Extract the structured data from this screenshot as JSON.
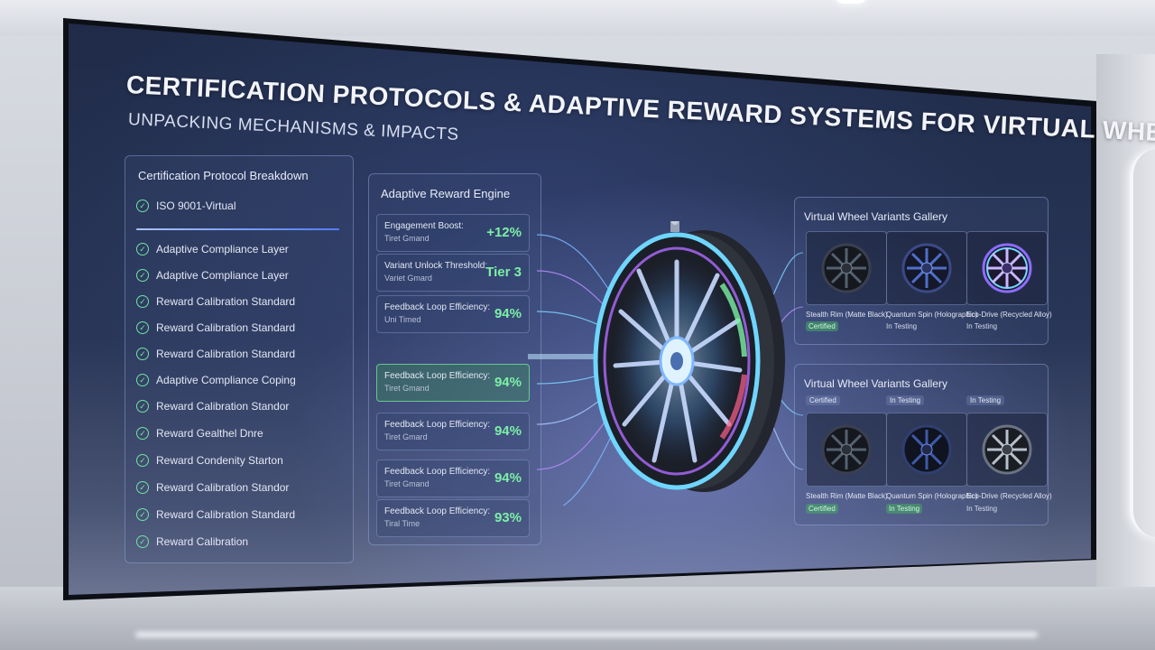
{
  "title": "Certification Protocols & Adaptive Reward Systems for Virtual Wheel Variants",
  "subtitle": "Unpacking Mechanisms & Impacts",
  "certification": {
    "title": "Certification Protocol Breakdown",
    "items": [
      "ISO 9001-Virtual",
      "Adaptive Compliance Layer",
      "Adaptive Compliance Layer",
      "Reward Calibration Standard",
      "Reward Calibration Standard",
      "Reward Calibration Standard",
      "Adaptive Compliance Coping",
      "Reward Calibration Standor",
      "Reward Gealthel Dnre",
      "Reward Condenity Starton",
      "Reward Calibration Standor",
      "Reward Calibration Standard",
      "Reward Calibration"
    ]
  },
  "engine": {
    "title": "Adaptive Reward Engine",
    "metrics": [
      {
        "label": "Engagement Boost:",
        "sub": "Tiret Gmand",
        "value": "+12%"
      },
      {
        "label": "Variant Unlock Threshold:",
        "sub": "Variet Gmard",
        "value": "Tier 3"
      },
      {
        "label": "Feedback Loop Efficiency:",
        "sub": "Uni Timed",
        "value": "94%"
      },
      {
        "label": "Feedback Loop Efficiency:",
        "sub": "Tiret Gmand",
        "value": "94%"
      },
      {
        "label": "Feedback Loop Efficiency:",
        "sub": "Tiret Gmard",
        "value": "94%"
      },
      {
        "label": "Feedback Loop Efficiency:",
        "sub": "Tiret Gmand",
        "value": "94%"
      },
      {
        "label": "Feedback Loop Efficiency:",
        "sub": "Tiral Time",
        "value": "93%"
      }
    ]
  },
  "gallery_top": {
    "title": "Virtual Wheel Variants Gallery",
    "tiles": [
      {
        "caption": "Stealth Rim (Matte Black)",
        "status": "Certified"
      },
      {
        "caption": "Quantum Spin (Holographic)",
        "status": "In Testing"
      },
      {
        "caption": "Eco-Drive (Recycled Alloy)",
        "status": "In Testing"
      }
    ]
  },
  "gallery_bottom": {
    "title": "Virtual Wheel Variants Gallery",
    "badges": [
      "Certified",
      "In Testing",
      "In Testing"
    ],
    "tiles": [
      {
        "caption": "Stealth Rim (Matte Black)",
        "status": "Certified"
      },
      {
        "caption": "Quantum Spin (Holographic)",
        "status": "In Testing"
      },
      {
        "caption": "Eco-Drive (Recycled Alloy)",
        "status": "In Testing"
      }
    ]
  },
  "colors": {
    "accent_green": "#7cf0a6",
    "wheel_glow": "#6fd6ff",
    "wheel_purple": "#b06cff"
  },
  "icons": {
    "check": "check-circle-icon",
    "wheel": "wheel-icon"
  }
}
